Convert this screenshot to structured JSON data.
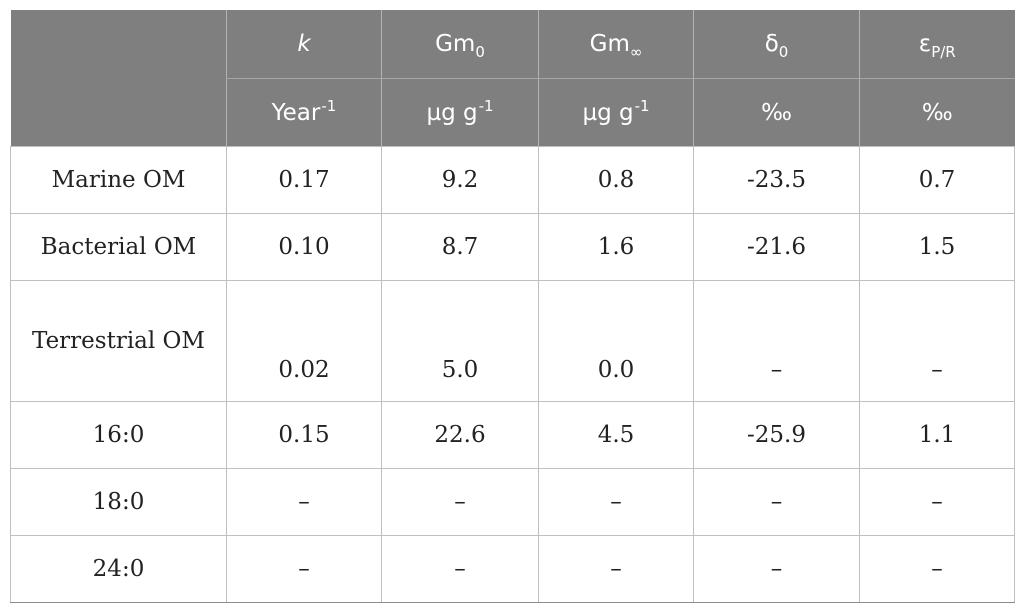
{
  "table": {
    "header": [
      {
        "symbol": "k",
        "sub": "",
        "unit": "Year",
        "unit_sup": "-1"
      },
      {
        "symbol": "Gm",
        "sub": "0",
        "unit": "µg g",
        "unit_sup": "-1"
      },
      {
        "symbol": "Gm",
        "sub": "∞",
        "unit": "µg g",
        "unit_sup": "-1"
      },
      {
        "symbol": "δ",
        "sub": "0",
        "unit": "‰",
        "unit_sup": ""
      },
      {
        "symbol": "ε",
        "sub": "P/R",
        "unit": "‰",
        "unit_sup": ""
      }
    ],
    "rows": [
      {
        "label": "Marine OM",
        "values": [
          "0.17",
          "9.2",
          "0.8",
          "-23.5",
          "0.7"
        ]
      },
      {
        "label": "Bacterial OM",
        "values": [
          "0.10",
          "8.7",
          "1.6",
          "-21.6",
          "1.5"
        ]
      },
      {
        "label": "Terrestrial OM",
        "values": [
          "0.02",
          "5.0",
          "0.0",
          "–",
          "–"
        ]
      },
      {
        "label": "16:0",
        "values": [
          "0.15",
          "22.6",
          "4.5",
          "-25.9",
          "1.1"
        ]
      },
      {
        "label": "18:0",
        "values": [
          "–",
          "–",
          "–",
          "–",
          "–"
        ]
      },
      {
        "label": "24:0",
        "values": [
          "–",
          "–",
          "–",
          "–",
          "–"
        ]
      }
    ]
  }
}
